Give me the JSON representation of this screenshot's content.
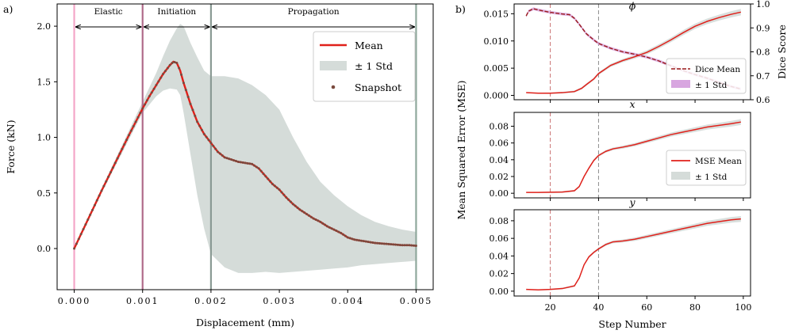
{
  "chart_data": [
    {
      "type": "line",
      "panel_label": "a)",
      "xlabel": "Displacement (mm)",
      "ylabel": "Force (kN)",
      "xlim": [
        -0.00025,
        0.00525
      ],
      "ylim": [
        -0.37,
        2.2
      ],
      "xticks": [
        0,
        0.001,
        0.002,
        0.003,
        0.004,
        0.005
      ],
      "xtick_labels": [
        "0.000",
        "0.001",
        "0.002",
        "0.003",
        "0.004",
        "0.005"
      ],
      "yticks": [
        0,
        0.5,
        1.0,
        1.5,
        2.0
      ],
      "ytick_labels": [
        "0.0",
        "0.5",
        "1.0",
        "1.5",
        "2.0"
      ],
      "stages": [
        {
          "name": "Elastic",
          "from": 0,
          "to": 0.001
        },
        {
          "name": "Initiation",
          "from": 0.001,
          "to": 0.002
        },
        {
          "name": "Propagation",
          "from": 0.002,
          "to": 0.005
        }
      ],
      "vlines": [
        {
          "x": 0,
          "color": "#f4a6c8"
        },
        {
          "x": 0.001,
          "color": "#b06a8a"
        },
        {
          "x": 0.002,
          "color": "#8a9a94"
        },
        {
          "x": 0.005,
          "color": "#8fa89c"
        }
      ],
      "mean": {
        "x": [
          0,
          0.0002,
          0.0004,
          0.0006,
          0.0008,
          0.001,
          0.0011,
          0.0012,
          0.0013,
          0.0014,
          0.00145,
          0.0015,
          0.00155,
          0.0016,
          0.0017,
          0.0018,
          0.0019,
          0.002,
          0.0021,
          0.0022,
          0.0023,
          0.0024,
          0.0025,
          0.0026,
          0.0027,
          0.0028,
          0.0029,
          0.003,
          0.0031,
          0.0032,
          0.0033,
          0.0034,
          0.0035,
          0.0036,
          0.0037,
          0.0038,
          0.0039,
          0.004,
          0.0041,
          0.0042,
          0.0043,
          0.0044,
          0.0045,
          0.0046,
          0.0047,
          0.0048,
          0.0049,
          0.005
        ],
        "y": [
          0.0,
          0.26,
          0.52,
          0.77,
          1.02,
          1.26,
          1.37,
          1.47,
          1.57,
          1.65,
          1.68,
          1.67,
          1.6,
          1.49,
          1.3,
          1.14,
          1.03,
          0.95,
          0.87,
          0.82,
          0.8,
          0.78,
          0.77,
          0.76,
          0.72,
          0.65,
          0.58,
          0.53,
          0.46,
          0.4,
          0.35,
          0.31,
          0.27,
          0.24,
          0.2,
          0.17,
          0.14,
          0.1,
          0.08,
          0.07,
          0.06,
          0.05,
          0.045,
          0.04,
          0.035,
          0.03,
          0.03,
          0.025
        ]
      },
      "std_band": {
        "x": [
          0,
          0.0002,
          0.0004,
          0.0006,
          0.0008,
          0.001,
          0.0012,
          0.0013,
          0.0014,
          0.0015,
          0.00155,
          0.0016,
          0.0017,
          0.0018,
          0.0019,
          0.002,
          0.0022,
          0.0024,
          0.0026,
          0.0028,
          0.003,
          0.0032,
          0.0034,
          0.0036,
          0.0038,
          0.004,
          0.0042,
          0.0044,
          0.0046,
          0.0048,
          0.005
        ],
        "upper": [
          0.0,
          0.27,
          0.54,
          0.8,
          1.06,
          1.32,
          1.58,
          1.73,
          1.87,
          1.98,
          2.02,
          2.0,
          1.85,
          1.72,
          1.6,
          1.55,
          1.55,
          1.53,
          1.47,
          1.38,
          1.25,
          1.0,
          0.78,
          0.6,
          0.48,
          0.38,
          0.3,
          0.24,
          0.2,
          0.17,
          0.15
        ],
        "lower": [
          0.0,
          0.25,
          0.5,
          0.74,
          0.98,
          1.22,
          1.37,
          1.42,
          1.44,
          1.43,
          1.38,
          1.22,
          0.85,
          0.48,
          0.18,
          -0.05,
          -0.17,
          -0.22,
          -0.22,
          -0.21,
          -0.22,
          -0.21,
          -0.2,
          -0.19,
          -0.18,
          -0.17,
          -0.15,
          -0.14,
          -0.13,
          -0.12,
          -0.11
        ]
      },
      "colors": {
        "mean": "#e0201a",
        "band": "#d5dcd9",
        "snapshot": "#7a4a3e",
        "axis": "#000000"
      },
      "legend": {
        "position": "top-right",
        "entries": [
          "Mean",
          "± 1 Std",
          "Snapshot"
        ]
      }
    },
    {
      "type": "line",
      "panel_label": "b)",
      "xlabel": "Step Number",
      "ylabel": "Mean Squared Error (MSE)",
      "xlim": [
        5,
        103
      ],
      "xticks": [
        20,
        40,
        60,
        80,
        100
      ],
      "xtick_labels": [
        "20",
        "40",
        "60",
        "80",
        "100"
      ],
      "vlines": [
        {
          "x": 20,
          "color": "#c97070"
        },
        {
          "x": 40,
          "color": "#8c8c8c"
        }
      ],
      "subplots": [
        {
          "title": "ϕ",
          "ylim": [
            -0.0008,
            0.0168
          ],
          "yticks": [
            0,
            0.005,
            0.01,
            0.015
          ],
          "ytick_labels": [
            "0.000",
            "0.005",
            "0.010",
            "0.015"
          ],
          "right_axis": {
            "label": "Dice Score",
            "ylim": [
              0.6,
              1.0
            ],
            "yticks": [
              0.6,
              0.7,
              0.8,
              0.9,
              1.0
            ],
            "ytick_labels": [
              "0.6",
              "0.7",
              "0.8",
              "0.9",
              "1.0"
            ]
          },
          "mse": {
            "x": [
              10,
              15,
              20,
              25,
              30,
              33,
              35,
              38,
              40,
              45,
              50,
              55,
              60,
              65,
              70,
              75,
              80,
              85,
              90,
              95,
              99
            ],
            "y": [
              0.0005,
              0.0004,
              0.0004,
              0.0005,
              0.0007,
              0.0013,
              0.002,
              0.003,
              0.004,
              0.0055,
              0.0064,
              0.0071,
              0.0079,
              0.009,
              0.0102,
              0.0115,
              0.0127,
              0.0136,
              0.0143,
              0.0149,
              0.0153
            ]
          },
          "dice": {
            "x": [
              10,
              11,
              13,
              15,
              20,
              25,
              28,
              30,
              32,
              35,
              38,
              40,
              45,
              50,
              55,
              60,
              65,
              70,
              75,
              80,
              85,
              90,
              95,
              99
            ],
            "y": [
              0.95,
              0.97,
              0.98,
              0.975,
              0.965,
              0.958,
              0.955,
              0.94,
              0.915,
              0.875,
              0.85,
              0.835,
              0.815,
              0.8,
              0.79,
              0.778,
              0.762,
              0.742,
              0.722,
              0.705,
              0.69,
              0.672,
              0.655,
              0.645
            ]
          },
          "legend": {
            "position": "lower-right",
            "entries": [
              "Dice Mean",
              "± 1 Std"
            ]
          }
        },
        {
          "title": "x",
          "ylim": [
            -0.0055,
            0.0965
          ],
          "yticks": [
            0,
            0.02,
            0.04,
            0.06,
            0.08
          ],
          "ytick_labels": [
            "0.00",
            "0.02",
            "0.04",
            "0.06",
            "0.08"
          ],
          "mse": {
            "x": [
              10,
              15,
              20,
              25,
              30,
              32,
              34,
              36,
              38,
              40,
              43,
              46,
              50,
              55,
              60,
              65,
              70,
              75,
              80,
              85,
              90,
              95,
              99
            ],
            "y": [
              0.001,
              0.001,
              0.0012,
              0.0015,
              0.003,
              0.008,
              0.02,
              0.03,
              0.039,
              0.045,
              0.05,
              0.053,
              0.055,
              0.058,
              0.062,
              0.066,
              0.07,
              0.073,
              0.076,
              0.079,
              0.081,
              0.083,
              0.085
            ]
          },
          "legend": {
            "position": "lower-right",
            "entries": [
              "MSE Mean",
              "± 1 Std"
            ]
          }
        },
        {
          "title": "y",
          "ylim": [
            -0.0055,
            0.0925
          ],
          "yticks": [
            0,
            0.02,
            0.04,
            0.06,
            0.08
          ],
          "ytick_labels": [
            "0.00",
            "0.02",
            "0.04",
            "0.06",
            "0.08"
          ],
          "mse": {
            "x": [
              10,
              15,
              20,
              25,
              30,
              32,
              34,
              36,
              38,
              40,
              43,
              46,
              50,
              55,
              60,
              65,
              70,
              75,
              80,
              85,
              90,
              95,
              99
            ],
            "y": [
              0.002,
              0.0015,
              0.002,
              0.003,
              0.006,
              0.015,
              0.03,
              0.039,
              0.044,
              0.048,
              0.053,
              0.056,
              0.057,
              0.059,
              0.062,
              0.065,
              0.068,
              0.071,
              0.074,
              0.077,
              0.079,
              0.081,
              0.082
            ]
          }
        }
      ],
      "colors": {
        "mse": "#e0201a",
        "mse_band": "#d5dcd9",
        "dice": "#9a1a1a",
        "dice_band": "#d8a6e0"
      }
    }
  ]
}
